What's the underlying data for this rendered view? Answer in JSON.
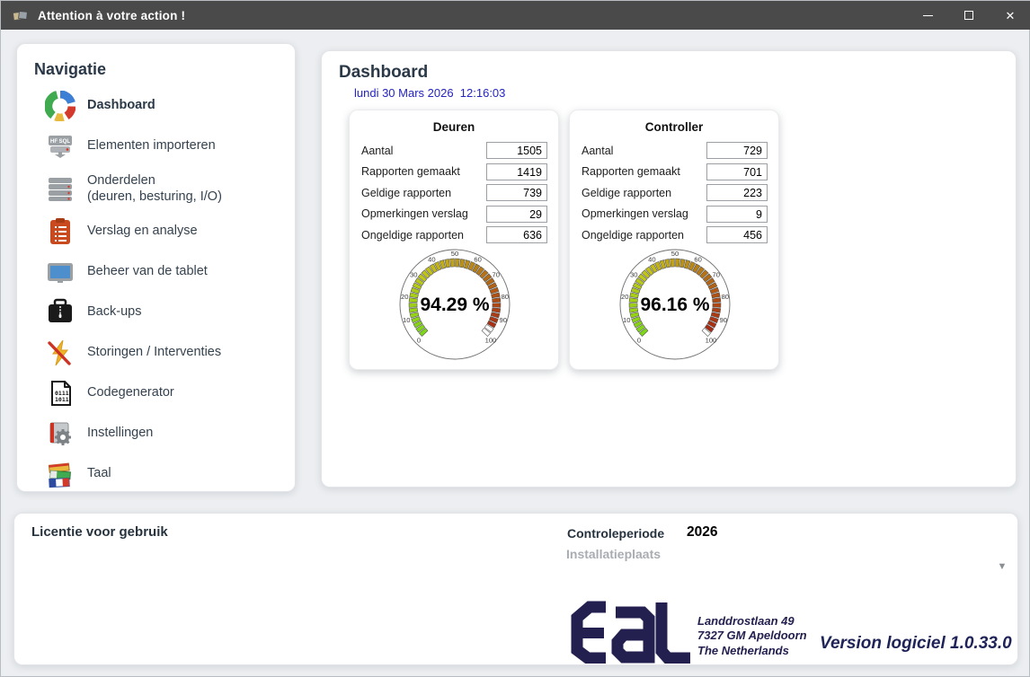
{
  "window": {
    "title": "Attention à votre action !"
  },
  "sidebar": {
    "title": "Navigatie",
    "items": [
      {
        "label": "Dashboard",
        "icon": "donut-chart-icon",
        "active": true
      },
      {
        "label": "Elementen importeren",
        "icon": "hfsql-database-icon"
      },
      {
        "label": "Onderdelen",
        "sublabel": "(deuren, besturing, I/O)",
        "icon": "server-stack-icon"
      },
      {
        "label": "Verslag en analyse",
        "icon": "clipboard-icon"
      },
      {
        "label": "Beheer van de tablet",
        "icon": "tablet-icon"
      },
      {
        "label": "Back-ups",
        "icon": "briefcase-zip-icon"
      },
      {
        "label": "Storingen / Interventies",
        "icon": "lightning-slash-icon"
      },
      {
        "label": "Codegenerator",
        "icon": "binary-document-icon"
      },
      {
        "label": "Instellingen",
        "icon": "book-gear-icon"
      },
      {
        "label": "Taal",
        "icon": "language-flags-icon"
      }
    ]
  },
  "main": {
    "title": "Dashboard",
    "datetime": "lundi 30 Mars 2026  12:16:03",
    "gauge_ticks": [
      0,
      10,
      20,
      30,
      40,
      50,
      60,
      70,
      80,
      90,
      100
    ],
    "cards": [
      {
        "title": "Deuren",
        "rows": [
          {
            "label": "Aantal",
            "value": "1505"
          },
          {
            "label": "Rapporten gemaakt",
            "value": "1419"
          },
          {
            "label": "Geldige rapporten",
            "value": "739"
          },
          {
            "label": "Opmerkingen verslag",
            "value": "29"
          },
          {
            "label": "Ongeldige rapporten",
            "value": "636"
          }
        ],
        "gauge": {
          "value": 94.29,
          "display": "94.29 %"
        }
      },
      {
        "title": "Controller",
        "rows": [
          {
            "label": "Aantal",
            "value": "729"
          },
          {
            "label": "Rapporten gemaakt",
            "value": "701"
          },
          {
            "label": "Geldige rapporten",
            "value": "223"
          },
          {
            "label": "Opmerkingen verslag",
            "value": "9"
          },
          {
            "label": "Ongeldige rapporten",
            "value": "456"
          }
        ],
        "gauge": {
          "value": 96.16,
          "display": "96.16 %"
        }
      }
    ]
  },
  "footer": {
    "license_title": "Licentie voor gebruik",
    "control_period_label": "Controleperiode",
    "control_period_value": "2026",
    "installation_place_label": "Installatieplaats",
    "logo_text": "EaL",
    "address_lines": [
      "Landdrostlaan 49",
      "7327 GM Apeldoorn",
      "The Netherlands"
    ],
    "version_text": "Version logiciel 1.0.33.0"
  },
  "colors": {
    "titlebar_bg": "#4a4a4a",
    "heading": "#2a3847",
    "date_blue": "#2424c0",
    "logo_navy": "#232050",
    "gauge_green": "#7dc832",
    "gauge_red": "#c23010",
    "footer_muted": "#a9adb2"
  }
}
